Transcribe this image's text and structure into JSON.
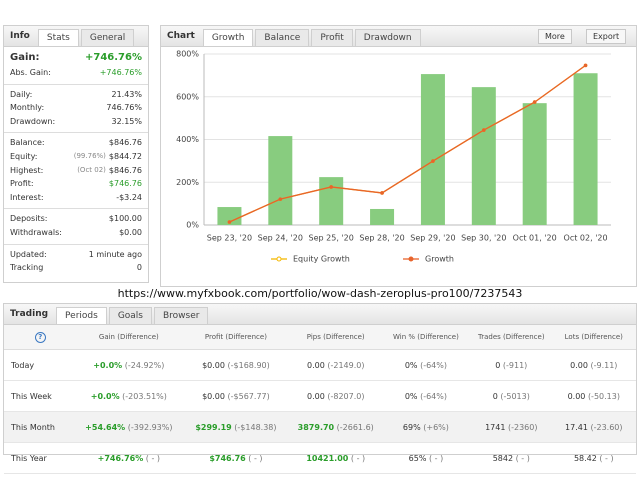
{
  "info": {
    "tabs": [
      "Info",
      "Stats",
      "General"
    ],
    "groups": [
      [
        {
          "label": "Gain:",
          "value": "+746.76%"
        },
        {
          "label": "Abs. Gain:",
          "value": "+746.76%"
        }
      ],
      [
        {
          "label": "Daily:",
          "value": "21.43%"
        },
        {
          "label": "Monthly:",
          "value": "746.76%"
        },
        {
          "label": "Drawdown:",
          "value": "32.15%"
        }
      ],
      [
        {
          "label": "Balance:",
          "value": "$846.76"
        },
        {
          "label": "Equity:",
          "note": "(99.76%)",
          "value": "$844.72"
        },
        {
          "label": "Highest:",
          "note": "(Oct 02)",
          "value": "$846.76"
        },
        {
          "label": "Profit:",
          "value": "$746.76"
        },
        {
          "label": "Interest:",
          "value": "-$3.24"
        }
      ],
      [
        {
          "label": "Deposits:",
          "value": "$100.00"
        },
        {
          "label": "Withdrawals:",
          "value": "$0.00"
        }
      ],
      [
        {
          "label": "Updated:",
          "value": "1 minute ago"
        },
        {
          "label": "Tracking",
          "value": "0"
        }
      ]
    ]
  },
  "chart_panel": {
    "title": "Chart",
    "tabs": [
      "Growth",
      "Balance",
      "Profit",
      "Drawdown"
    ],
    "buttons": [
      "More",
      "Export"
    ]
  },
  "chart_data": {
    "type": "bar",
    "categories": [
      "Sep 23, '20",
      "Sep 24, '20",
      "Sep 25, '20",
      "Sep 28, '20",
      "Sep 29, '20",
      "Sep 30, '20",
      "Oct 01, '20",
      "Oct 02, '20"
    ],
    "bars": {
      "color": "#88cc7f",
      "values": [
        84,
        416,
        224,
        75,
        706,
        645,
        570,
        710
      ]
    },
    "series": [
      {
        "name": "Equity Growth",
        "color": "#f5b800",
        "values": [
          14,
          121,
          178,
          150,
          299,
          444,
          575,
          746.76
        ]
      },
      {
        "name": "Growth",
        "color": "#e8642c",
        "values": [
          14,
          121,
          178,
          150,
          299,
          444,
          575,
          746.76
        ]
      }
    ],
    "ylim": [
      0,
      800
    ],
    "yticks": [
      {
        "value": 0,
        "label": "0%"
      },
      {
        "value": 200,
        "label": "200%"
      },
      {
        "value": 400,
        "label": "400%"
      },
      {
        "value": 600,
        "label": "600%"
      },
      {
        "value": 800,
        "label": "800%"
      }
    ],
    "grid": true
  },
  "url": "https://www.myfxbook.com/portfolio/wow-dash-zeroplus-pro100/7237543",
  "trading": {
    "tabs": [
      "Trading",
      "Periods",
      "Goals",
      "Browser"
    ],
    "help_icon": "?",
    "columns": [
      "Gain (Difference)",
      "Profit (Difference)",
      "Pips (Difference)",
      "Win % (Difference)",
      "Trades (Difference)",
      "Lots (Difference)"
    ],
    "rows": [
      {
        "label": "Today",
        "cells": [
          {
            "value": "+0.0%",
            "diff": "(-24.92%)",
            "color": "#2a9d2a"
          },
          {
            "value": "$0.00",
            "diff": "(-$168.90)"
          },
          {
            "value": "0.00",
            "diff": "(-2149.0)"
          },
          {
            "value": "0%",
            "diff": "(-64%)"
          },
          {
            "value": "0",
            "diff": "(-911)"
          },
          {
            "value": "0.00",
            "diff": "(-9.11)"
          }
        ]
      },
      {
        "label": "This Week",
        "cells": [
          {
            "value": "+0.0%",
            "diff": "(-203.51%)",
            "color": "#2a9d2a"
          },
          {
            "value": "$0.00",
            "diff": "(-$567.77)"
          },
          {
            "value": "0.00",
            "diff": "(-8207.0)"
          },
          {
            "value": "0%",
            "diff": "(-64%)"
          },
          {
            "value": "0",
            "diff": "(-5013)"
          },
          {
            "value": "0.00",
            "diff": "(-50.13)"
          }
        ]
      },
      {
        "label": "This Month",
        "cells": [
          {
            "value": "+54.64%",
            "diff": "(-392.93%)",
            "color": "#2a9d2a"
          },
          {
            "value": "$299.19",
            "diff": "(-$148.38)",
            "color": "#2a9d2a"
          },
          {
            "value": "3879.70",
            "diff": "(-2661.6)",
            "color": "#2a9d2a"
          },
          {
            "value": "69%",
            "diff": "(+6%)"
          },
          {
            "value": "1741",
            "diff": "(-2360)"
          },
          {
            "value": "17.41",
            "diff": "(-23.60)"
          }
        ]
      },
      {
        "label": "This Year",
        "cells": [
          {
            "value": "+746.76%",
            "diff": "( - )",
            "color": "#2a9d2a"
          },
          {
            "value": "$746.76",
            "diff": "( - )",
            "color": "#2a9d2a"
          },
          {
            "value": "10421.00",
            "diff": "( - )",
            "color": "#2a9d2a"
          },
          {
            "value": "65%",
            "diff": "( - )"
          },
          {
            "value": "5842",
            "diff": "( - )"
          },
          {
            "value": "58.42",
            "diff": "( - )"
          }
        ]
      }
    ]
  }
}
